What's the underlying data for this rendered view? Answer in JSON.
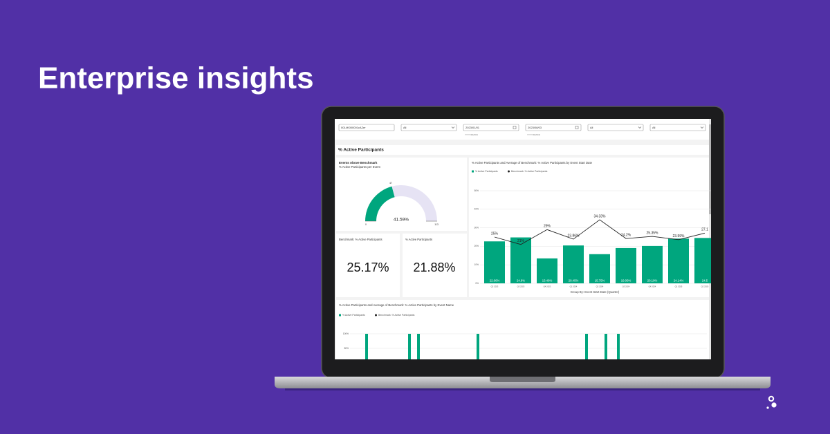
{
  "headline": "Enterprise insights",
  "filters": [
    {
      "value": "0014K000001cAZer"
    },
    {
      "value": "All"
    },
    {
      "value": "2023/01/01",
      "hint": "YYYY/MM/DD"
    },
    {
      "value": "2023/08/03",
      "hint": "YYYY/MM/DD"
    },
    {
      "value": "All"
    },
    {
      "value": "All"
    }
  ],
  "section_title": "% Active Participants",
  "kpis": [
    {
      "label": "Benchmark: % Active Participants",
      "value": "25.17%"
    },
    {
      "label": "% Active Participants",
      "value": "21.88%"
    }
  ],
  "chart_data": [
    {
      "type": "gauge",
      "title": "Events Above Benchmark",
      "subtitle": "% Active Participants per Event",
      "min": 0,
      "max": 113,
      "value": 47,
      "percent": 41.59,
      "percent_label": "41.59%",
      "color": "#00a67e",
      "track_color": "#e6e3f4"
    },
    {
      "type": "bar",
      "title": "% Active Participants and Average of Benchmark: % Active Participants by Event Start Date",
      "xlabel": "Group By: Event Start Date (Quarter)",
      "categories": [
        "Q2 2023",
        "Q3 2023",
        "Q4 2023",
        "Q1 2024",
        "Q2 2024",
        "Q3 2024",
        "Q4 2024",
        "Q1 2025",
        "Q2 2025"
      ],
      "series": [
        {
          "name": "% Active Participants",
          "type": "bar",
          "color": "#00a67e",
          "values": [
            22.66,
            24.8,
            13.46,
            20.45,
            15.75,
            19.06,
            20.19,
            24.14,
            24.5
          ],
          "value_labels": [
            "22.66%",
            "24.8%",
            "13.46%",
            "20.45%",
            "15.75%",
            "19.06%",
            "20.19%",
            "24.14%",
            "24.5"
          ]
        },
        {
          "name": "Benchmark: % Active Participants",
          "type": "line",
          "color": "#222222",
          "values": [
            25,
            21,
            29,
            23.86,
            34.33,
            24.2,
            25.35,
            23.59,
            27.1
          ],
          "value_labels": [
            "25%",
            "21%",
            "29%",
            "23.86%",
            "34.33%",
            "24.2%",
            "25.35%",
            "23.59%",
            "27.1"
          ]
        }
      ],
      "ylim": [
        0,
        50
      ],
      "yticks": [
        {
          "value": 0,
          "label": "0%"
        },
        {
          "value": 10,
          "label": "10%"
        },
        {
          "value": 20,
          "label": "20%"
        },
        {
          "value": 30,
          "label": "30%"
        },
        {
          "value": 40,
          "label": "40%"
        },
        {
          "value": 50,
          "label": "50%"
        }
      ],
      "grid": true
    },
    {
      "type": "bar",
      "title": "% Active Participants and Average of Benchmark: % Active Participants by Event Name",
      "series": [
        {
          "name": "% Active Participants",
          "type": "bar",
          "color": "#00a67e",
          "values": [
            100,
            100,
            100,
            100,
            100,
            100,
            100
          ]
        },
        {
          "name": "Benchmark: % Active Participants",
          "type": "line",
          "color": "#222222",
          "values": []
        }
      ],
      "ylim": [
        0,
        100
      ],
      "yticks": [
        {
          "value": 80,
          "label": "80%"
        },
        {
          "value": 100,
          "label": "100%"
        }
      ],
      "grid": true
    }
  ]
}
